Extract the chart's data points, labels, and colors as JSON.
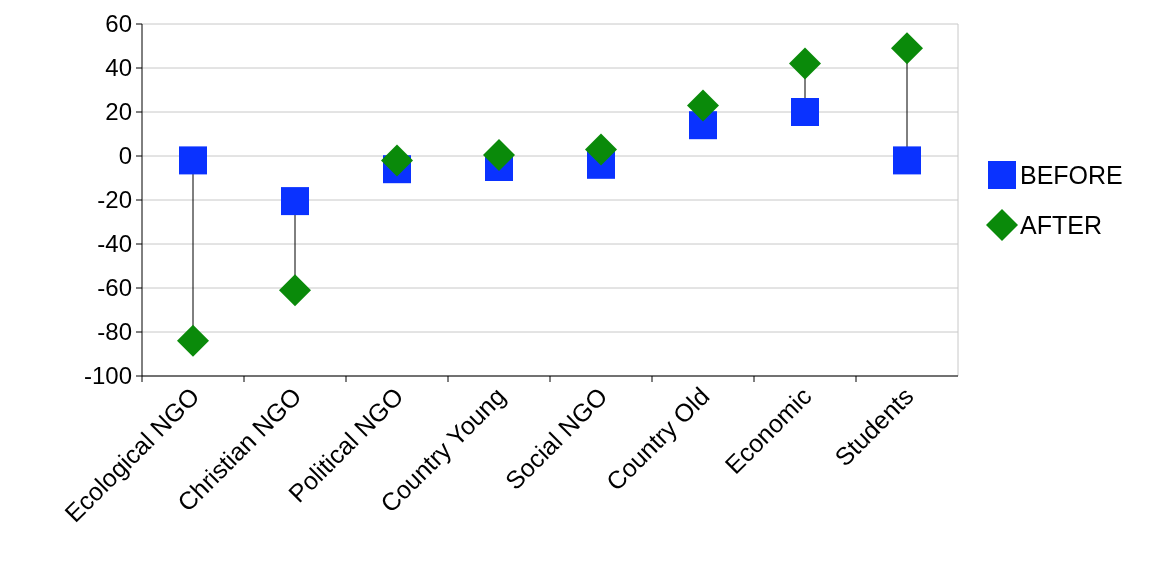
{
  "chart_data": {
    "type": "scatter",
    "categories": [
      "Ecological NGO",
      "Christian NGO",
      "Political NGO",
      "Country Young",
      "Social NGO",
      "Country Old",
      "Economic",
      "Students"
    ],
    "series": [
      {
        "name": "BEFORE",
        "color": "#0a32ff",
        "marker": "square",
        "values": [
          -2,
          -20.5,
          -6,
          -5,
          -4,
          14,
          20,
          -2
        ]
      },
      {
        "name": "AFTER",
        "color": "#0a8a0a",
        "marker": "diamond",
        "values": [
          -84,
          -61,
          -2,
          0.5,
          3,
          23,
          42,
          49
        ]
      }
    ],
    "ylim": [
      -100,
      60
    ],
    "yticks": [
      -100,
      -80,
      -60,
      -40,
      -20,
      0,
      20,
      40,
      60
    ],
    "grid": "y",
    "legend": "right"
  }
}
